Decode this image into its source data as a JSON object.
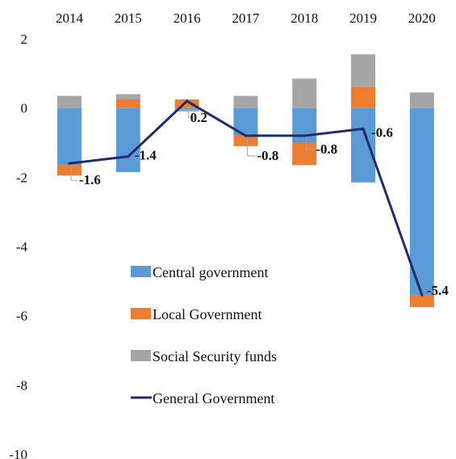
{
  "chart_data": {
    "type": "bar",
    "stacked": true,
    "categories": [
      "2014",
      "2015",
      "2016",
      "2017",
      "2018",
      "2019",
      "2020"
    ],
    "series": [
      {
        "name": "Central government",
        "kind": "bar",
        "color": "#5b9bd5",
        "values": [
          -1.65,
          -1.85,
          -0.05,
          -0.8,
          -1.0,
          -2.15,
          -5.4
        ]
      },
      {
        "name": "Local Government",
        "kind": "bar",
        "color": "#ed7d31",
        "values": [
          -0.3,
          0.25,
          0.25,
          -0.3,
          -0.65,
          0.6,
          -0.35
        ]
      },
      {
        "name": "Social Security funds",
        "kind": "bar",
        "color": "#a5a5a5",
        "values": [
          0.35,
          0.15,
          -0.05,
          0.35,
          0.85,
          0.95,
          0.45
        ]
      },
      {
        "name": "General Government",
        "kind": "line",
        "color": "#1f2d6b",
        "values": [
          -1.6,
          -1.4,
          0.2,
          -0.8,
          -0.8,
          -0.6,
          -5.4
        ]
      }
    ],
    "data_labels": [
      "-1.6",
      "-1.4",
      "0.2",
      "-0.8",
      "-0.8",
      "-0.6",
      "-5.4"
    ],
    "y_ticks": [
      "2",
      "0",
      "-2",
      "-4",
      "-6",
      "-8",
      "-10"
    ],
    "ylim": [
      -10,
      2
    ],
    "title": "",
    "xlabel": "",
    "ylabel": "",
    "x_axis_position": "top",
    "grid": false,
    "legend": "inside-lower-left"
  }
}
